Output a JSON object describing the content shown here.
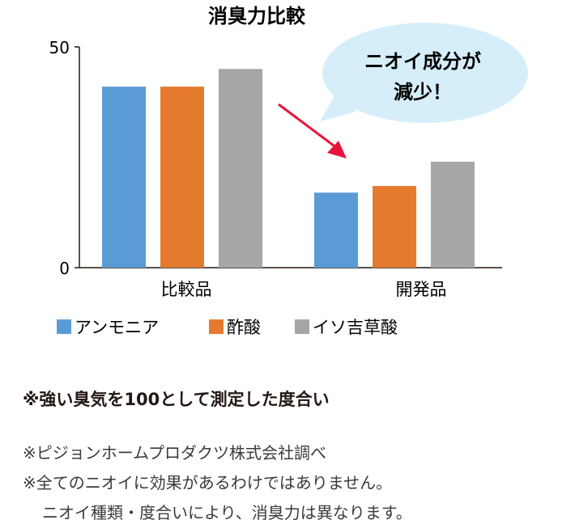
{
  "chart_data": {
    "type": "bar",
    "title": "消臭力比較",
    "categories": [
      "比較品",
      "開発品"
    ],
    "series": [
      {
        "name": "アンモニア",
        "color": "#5b9bd5",
        "values": [
          41,
          17
        ]
      },
      {
        "name": "酢酸",
        "color": "#e47a2e",
        "values": [
          41,
          18.5
        ]
      },
      {
        "name": "イソ吉草酸",
        "color": "#a6a6a6",
        "values": [
          45,
          24
        ]
      }
    ],
    "ylim": [
      0,
      50
    ],
    "yticks": [
      "0",
      "50"
    ],
    "xlabel": "",
    "ylabel": "",
    "legend": "bottom",
    "grid": false
  },
  "callout": {
    "line1": "ニオイ成分が",
    "line2": "減少！",
    "bubble_color": "#d6eefa",
    "arrow_color": "#e6143c"
  },
  "notes": {
    "emphasis": "※強い臭気を100として測定した度合い",
    "line1": "※ピジョンホームプロダクツ株式会社調べ",
    "line2": "※全てのニオイに効果があるわけではありません。",
    "line3": "ニオイ種類・度合いにより、消臭力は異なります。"
  }
}
